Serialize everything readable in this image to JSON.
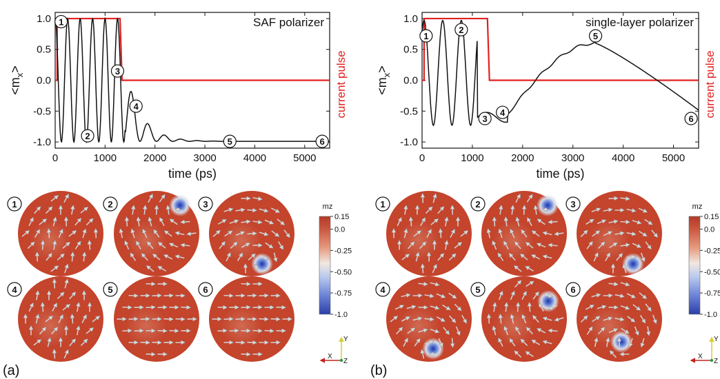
{
  "figure": {
    "panel_labels": [
      "(a)",
      "(b)"
    ],
    "colorbar": {
      "title": "mz",
      "ticks": [
        "0.15",
        "0.0",
        "-0.25",
        "-0.50",
        "-0.75",
        "-1.0"
      ]
    },
    "axis_triad": {
      "x": "X",
      "y": "Y",
      "z": "Z"
    }
  },
  "chart_data": [
    {
      "type": "line",
      "title": "SAF polarizer",
      "xlabel": "time (ps)",
      "ylabel": "<m_x>",
      "right_label": "current pulse",
      "xlim": [
        0,
        5500
      ],
      "ylim": [
        -1.1,
        1.1
      ],
      "xticks": [
        "0",
        "1000",
        "2000",
        "3000",
        "4000",
        "5000"
      ],
      "yticks": [
        "-1.0",
        "-0.5",
        "0.0",
        "0.5",
        "1.0"
      ],
      "series": [
        {
          "name": "",
          "color": "#111111",
          "kind": "mx"
        },
        {
          "name": "current pulse",
          "color": "#e02020",
          "x": [
            0,
            40,
            40,
            1300,
            1340,
            5500
          ],
          "y": [
            0,
            0,
            1.0,
            1.0,
            0.0,
            0.0
          ]
        }
      ],
      "markers": [
        {
          "label": "1",
          "x": 120,
          "y": 0.95
        },
        {
          "label": "2",
          "x": 650,
          "y": -0.9
        },
        {
          "label": "3",
          "x": 1250,
          "y": 0.15
        },
        {
          "label": "4",
          "x": 1620,
          "y": -0.42
        },
        {
          "label": "5",
          "x": 3500,
          "y": -0.99
        },
        {
          "label": "6",
          "x": 5350,
          "y": -0.99
        }
      ],
      "snapshots": [
        "1",
        "2",
        "3",
        "4",
        "5",
        "6"
      ]
    },
    {
      "type": "line",
      "title": "single-layer polarizer",
      "xlabel": "time (ps)",
      "ylabel": "<m_x>",
      "right_label": "current pulse",
      "xlim": [
        0,
        5500
      ],
      "ylim": [
        -1.1,
        1.1
      ],
      "xticks": [
        "0",
        "1000",
        "2000",
        "3000",
        "4000",
        "5000"
      ],
      "yticks": [
        "-1.0",
        "-0.5",
        "0.0",
        "0.5",
        "1.0"
      ],
      "series": [
        {
          "name": "",
          "color": "#111111",
          "kind": "mx"
        },
        {
          "name": "current pulse",
          "color": "#e02020",
          "x": [
            0,
            40,
            40,
            1300,
            1340,
            5500
          ],
          "y": [
            0,
            0,
            1.0,
            1.0,
            0.0,
            0.0
          ]
        }
      ],
      "markers": [
        {
          "label": "1",
          "x": 80,
          "y": 0.72
        },
        {
          "label": "2",
          "x": 780,
          "y": 0.82
        },
        {
          "label": "3",
          "x": 1250,
          "y": -0.62
        },
        {
          "label": "4",
          "x": 1600,
          "y": -0.52
        },
        {
          "label": "5",
          "x": 3450,
          "y": 0.72
        },
        {
          "label": "6",
          "x": 5350,
          "y": -0.62
        }
      ],
      "snapshots": [
        "1",
        "2",
        "3",
        "4",
        "5",
        "6"
      ]
    }
  ]
}
